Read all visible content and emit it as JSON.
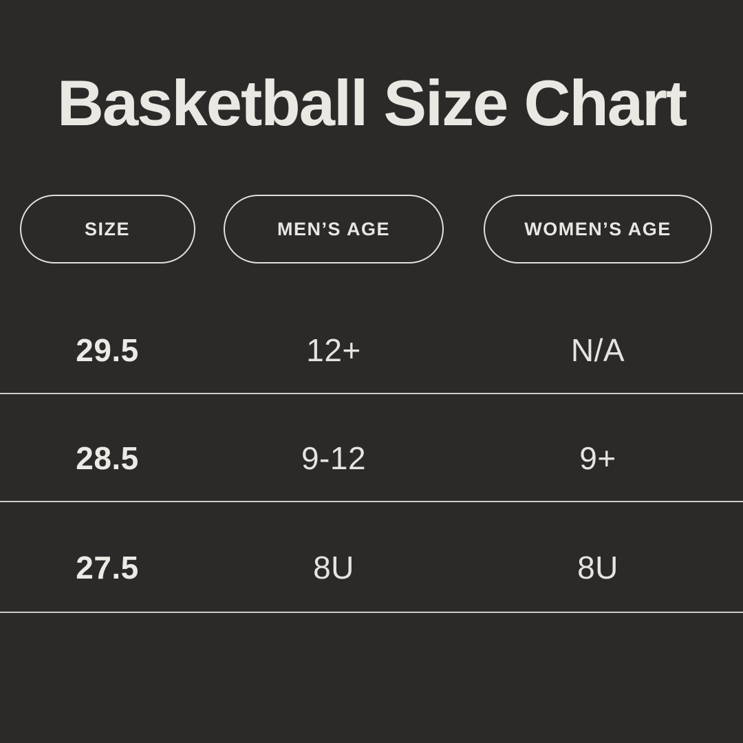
{
  "page": {
    "background_color": "#2b2a29",
    "text_color": "#eae8e3",
    "divider_color": "#cfcdc8",
    "pill_border_color": "#e2e0db"
  },
  "chart_data": {
    "type": "table",
    "title": "Basketball Size Chart",
    "columns": [
      "SIZE",
      "MEN’S AGE",
      "WOMEN’S AGE"
    ],
    "rows": [
      [
        "29.5",
        "12+",
        "N/A"
      ],
      [
        "28.5",
        "9-12",
        "9+"
      ],
      [
        "27.5",
        "8U",
        "8U"
      ]
    ]
  }
}
